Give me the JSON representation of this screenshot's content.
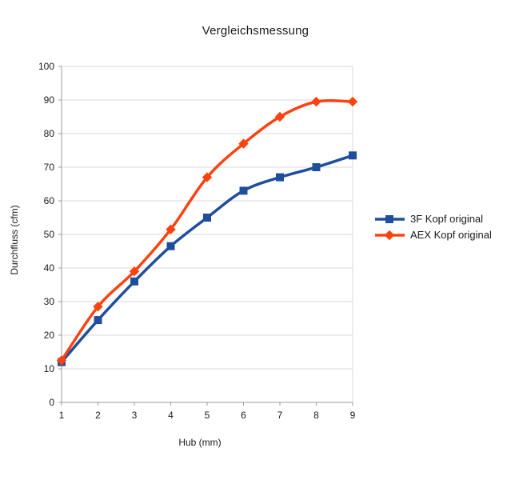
{
  "chart_data": {
    "type": "line",
    "title": "Vergleichsmessung",
    "xlabel": "Hub (mm)",
    "ylabel": "Durchfluss (cfm)",
    "x": [
      1,
      2,
      3,
      4,
      5,
      6,
      7,
      8,
      9
    ],
    "xticks": [
      1,
      2,
      3,
      4,
      5,
      6,
      7,
      8,
      9
    ],
    "ylim": [
      0,
      100
    ],
    "yticks": [
      0,
      10,
      20,
      30,
      40,
      50,
      60,
      70,
      80,
      90,
      100
    ],
    "grid": true,
    "smooth_lines": true,
    "legend_position": "right",
    "series": [
      {
        "name": "3F Kopf original",
        "marker": "square",
        "color": "#1f4e9c",
        "values": [
          12,
          24.5,
          36,
          46.5,
          55,
          63,
          67,
          70,
          73.5
        ]
      },
      {
        "name": "AEX Kopf original",
        "marker": "diamond",
        "color": "#fb4311",
        "values": [
          12.5,
          28.5,
          39,
          51.5,
          67,
          77,
          85,
          89.5,
          89.5
        ]
      }
    ],
    "colors": {
      "grid": "#d9d9d9",
      "axis": "#9b9b9b",
      "text": "#1a1a1a",
      "background": "#ffffff"
    }
  }
}
